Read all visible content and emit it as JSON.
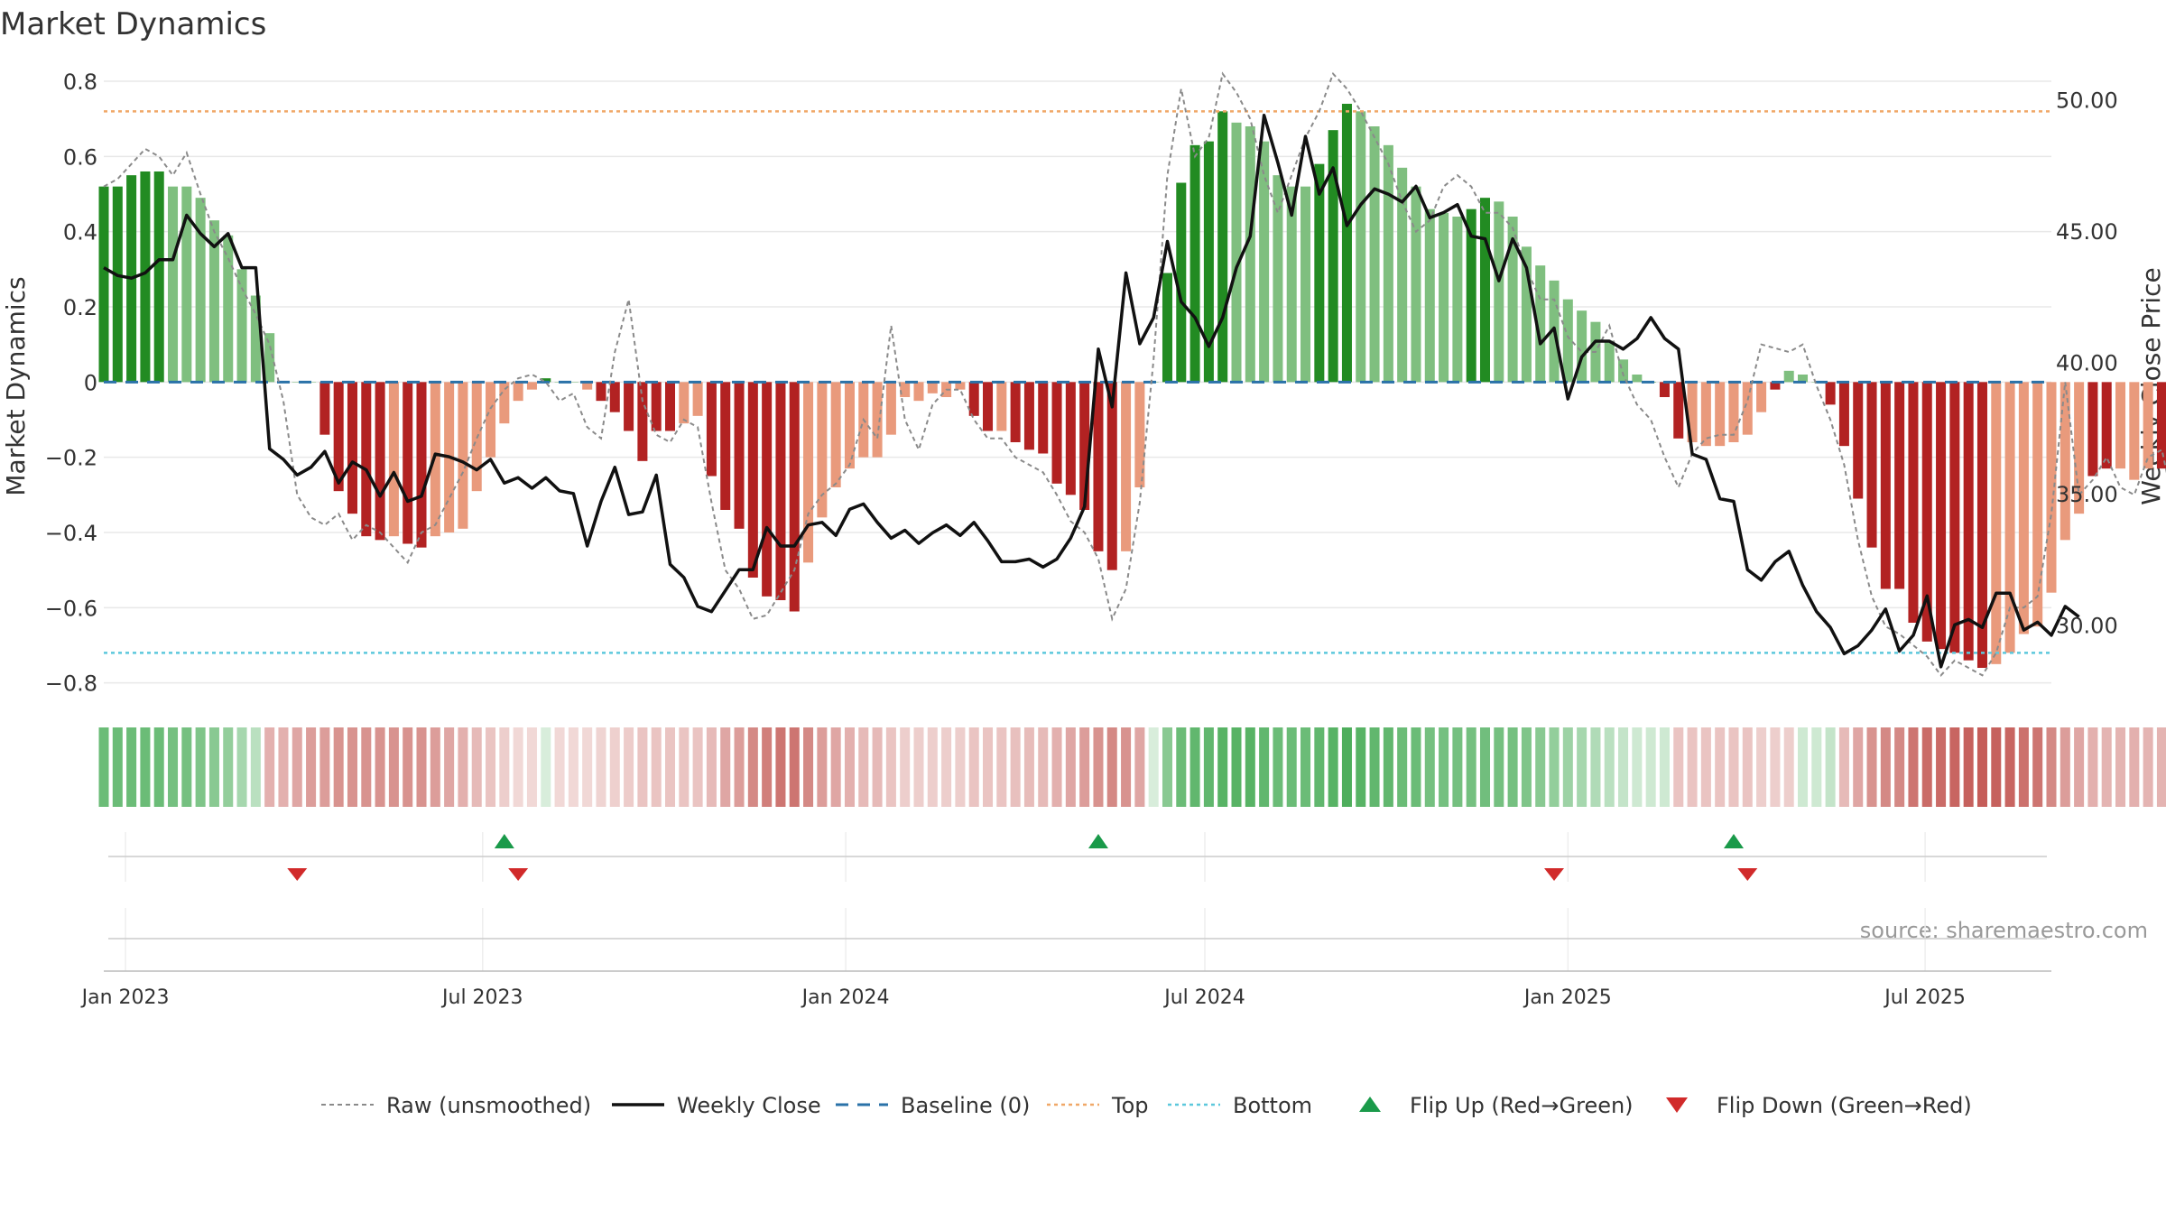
{
  "title": "Market Dynamics",
  "source": "source: sharemaestro.com",
  "colors": {
    "strong_green": "#228b22",
    "light_green": "#7fbf7f",
    "strong_red": "#b22222",
    "light_red": "#e99a7c",
    "raw": "#8a8a8a",
    "close": "#111111",
    "baseline": "#2a72a8",
    "top": "#f0a868",
    "bottom": "#5cc8dc",
    "flip_up": "#1a9a4a",
    "flip_down": "#d12a2a",
    "grid": "#e8e8e8",
    "axis": "#cccccc"
  },
  "chart_data": {
    "type": "bar",
    "title": "Market Dynamics",
    "ylabel": "Market Dynamics",
    "y2label": "Weekly Close Price",
    "ylim": [
      -0.82,
      0.8
    ],
    "y2lim": [
      27.5,
      50.7
    ],
    "yticks": [
      "0.8",
      "0.6",
      "0.4",
      "0.2",
      "0",
      "−0.2",
      "−0.4",
      "−0.6",
      "−0.8"
    ],
    "y2ticks": [
      "50.00",
      "45.00",
      "40.00",
      "35.00",
      "30.00"
    ],
    "xlim": [
      "2022-12-21",
      "2025-09-03"
    ],
    "xticks": [
      {
        "date": "2023-01-01",
        "label": "Jan 2023"
      },
      {
        "date": "2023-07-01",
        "label": "Jul 2023"
      },
      {
        "date": "2024-01-01",
        "label": "Jan 2024"
      },
      {
        "date": "2024-07-01",
        "label": "Jul 2024"
      },
      {
        "date": "2025-01-01",
        "label": "Jan 2025"
      },
      {
        "date": "2025-07-01",
        "label": "Jul 2025"
      }
    ],
    "top_level": 0.72,
    "bottom_level": -0.72,
    "baseline": 0,
    "start_week": "2022-12-21",
    "dynamics": [
      0.52,
      0.52,
      0.55,
      0.56,
      0.56,
      0.52,
      0.52,
      0.49,
      0.43,
      0.39,
      0.3,
      0.23,
      0.13,
      0.0,
      0.0,
      0.0,
      -0.14,
      -0.29,
      -0.35,
      -0.41,
      -0.42,
      -0.41,
      -0.43,
      -0.44,
      -0.41,
      -0.4,
      -0.39,
      -0.29,
      -0.2,
      -0.11,
      -0.05,
      -0.02,
      0.01,
      0.0,
      0.0,
      -0.02,
      -0.05,
      -0.08,
      -0.13,
      -0.21,
      -0.13,
      -0.13,
      -0.11,
      -0.09,
      -0.25,
      -0.34,
      -0.39,
      -0.52,
      -0.57,
      -0.58,
      -0.61,
      -0.48,
      -0.36,
      -0.28,
      -0.23,
      -0.2,
      -0.2,
      -0.14,
      -0.04,
      -0.05,
      -0.03,
      -0.04,
      -0.02,
      -0.09,
      -0.13,
      -0.13,
      -0.16,
      -0.18,
      -0.19,
      -0.27,
      -0.3,
      -0.34,
      -0.45,
      -0.5,
      -0.45,
      -0.28,
      0.0,
      0.29,
      0.53,
      0.63,
      0.64,
      0.72,
      0.69,
      0.68,
      0.64,
      0.55,
      0.52,
      0.52,
      0.58,
      0.67,
      0.74,
      0.72,
      0.68,
      0.63,
      0.57,
      0.52,
      0.46,
      0.45,
      0.44,
      0.46,
      0.49,
      0.48,
      0.44,
      0.36,
      0.31,
      0.27,
      0.22,
      0.19,
      0.16,
      0.11,
      0.06,
      0.02,
      0.0,
      -0.04,
      -0.15,
      -0.16,
      -0.17,
      -0.17,
      -0.16,
      -0.14,
      -0.08,
      -0.02,
      0.03,
      0.02,
      0.0,
      -0.06,
      -0.17,
      -0.31,
      -0.44,
      -0.55,
      -0.55,
      -0.64,
      -0.69,
      -0.71,
      -0.72,
      -0.74,
      -0.76,
      -0.75,
      -0.72,
      -0.67,
      -0.65,
      -0.56,
      -0.42,
      -0.35,
      -0.25,
      -0.23,
      -0.23,
      -0.26,
      -0.23,
      -0.23,
      -0.25,
      -0.17,
      -0.16,
      -0.22,
      -0.22,
      -0.22
    ],
    "strength": [
      "s",
      "s",
      "s",
      "s",
      "s",
      "l",
      "l",
      "l",
      "l",
      "l",
      "l",
      "l",
      "l",
      "l",
      "l",
      "l",
      "s",
      "s",
      "s",
      "s",
      "s",
      "l",
      "s",
      "s",
      "l",
      "l",
      "l",
      "l",
      "l",
      "l",
      "l",
      "l",
      "s",
      "l",
      "l",
      "l",
      "s",
      "s",
      "s",
      "s",
      "s",
      "s",
      "l",
      "l",
      "s",
      "s",
      "s",
      "s",
      "s",
      "s",
      "s",
      "l",
      "l",
      "l",
      "l",
      "l",
      "l",
      "l",
      "l",
      "l",
      "l",
      "l",
      "l",
      "s",
      "s",
      "l",
      "s",
      "s",
      "s",
      "s",
      "s",
      "s",
      "s",
      "s",
      "l",
      "l",
      "l",
      "s",
      "s",
      "s",
      "s",
      "s",
      "l",
      "l",
      "l",
      "l",
      "l",
      "l",
      "s",
      "s",
      "s",
      "l",
      "l",
      "l",
      "l",
      "l",
      "l",
      "l",
      "l",
      "s",
      "s",
      "l",
      "l",
      "l",
      "l",
      "l",
      "l",
      "l",
      "l",
      "l",
      "l",
      "l",
      "s",
      "s",
      "s",
      "l",
      "l",
      "l",
      "l",
      "l",
      "l",
      "s",
      "l",
      "l",
      "l",
      "s",
      "s",
      "s",
      "s",
      "s",
      "s",
      "s",
      "s",
      "s",
      "s",
      "s",
      "s",
      "l",
      "l",
      "l",
      "l",
      "l",
      "l",
      "l",
      "s",
      "s",
      "l",
      "l",
      "l",
      "s",
      "l",
      "s",
      "s",
      "s"
    ],
    "raw": [
      0.52,
      0.54,
      0.58,
      0.62,
      0.6,
      0.55,
      0.61,
      0.5,
      0.4,
      0.33,
      0.25,
      0.18,
      0.1,
      -0.05,
      -0.3,
      -0.36,
      -0.38,
      -0.35,
      -0.42,
      -0.38,
      -0.4,
      -0.44,
      -0.48,
      -0.4,
      -0.38,
      -0.31,
      -0.24,
      -0.15,
      -0.07,
      -0.02,
      0.01,
      0.02,
      0.0,
      -0.05,
      -0.03,
      -0.12,
      -0.15,
      0.08,
      0.22,
      -0.05,
      -0.14,
      -0.16,
      -0.1,
      -0.12,
      -0.32,
      -0.5,
      -0.55,
      -0.63,
      -0.62,
      -0.56,
      -0.5,
      -0.35,
      -0.3,
      -0.27,
      -0.22,
      -0.1,
      -0.15,
      0.15,
      -0.1,
      -0.18,
      -0.06,
      -0.02,
      -0.02,
      -0.1,
      -0.15,
      -0.15,
      -0.2,
      -0.22,
      -0.24,
      -0.3,
      -0.37,
      -0.4,
      -0.47,
      -0.63,
      -0.55,
      -0.32,
      0.06,
      0.55,
      0.78,
      0.6,
      0.65,
      0.82,
      0.77,
      0.7,
      0.55,
      0.45,
      0.55,
      0.65,
      0.72,
      0.82,
      0.78,
      0.72,
      0.65,
      0.58,
      0.48,
      0.4,
      0.43,
      0.52,
      0.55,
      0.52,
      0.45,
      0.45,
      0.41,
      0.3,
      0.22,
      0.22,
      0.12,
      0.08,
      0.08,
      0.15,
      0.02,
      -0.06,
      -0.1,
      -0.2,
      -0.28,
      -0.19,
      -0.15,
      -0.14,
      -0.14,
      -0.05,
      0.1,
      0.09,
      0.08,
      0.1,
      -0.01,
      -0.1,
      -0.22,
      -0.42,
      -0.57,
      -0.65,
      -0.67,
      -0.7,
      -0.73,
      -0.78,
      -0.74,
      -0.76,
      -0.78,
      -0.72,
      -0.6,
      -0.6,
      -0.57,
      -0.35,
      0.0,
      -0.3,
      -0.26,
      -0.2,
      -0.28,
      -0.3,
      -0.2,
      -0.18,
      -0.35,
      0.03,
      -0.31,
      -0.26,
      -0.34
    ],
    "close": [
      43.6,
      43.3,
      43.2,
      43.4,
      43.9,
      43.9,
      45.6,
      44.9,
      44.4,
      44.9,
      43.6,
      43.6,
      36.7,
      36.3,
      35.7,
      36.0,
      36.6,
      35.4,
      36.2,
      35.9,
      34.9,
      35.8,
      34.7,
      34.9,
      36.5,
      36.4,
      36.2,
      35.9,
      36.3,
      35.4,
      35.6,
      35.2,
      35.6,
      35.1,
      35.0,
      33.0,
      34.7,
      36.0,
      34.2,
      34.3,
      35.7,
      32.3,
      31.8,
      30.7,
      30.5,
      31.3,
      32.1,
      32.1,
      33.7,
      33.0,
      33.0,
      33.8,
      33.9,
      33.4,
      34.4,
      34.6,
      33.9,
      33.3,
      33.6,
      33.1,
      33.5,
      33.8,
      33.4,
      33.9,
      33.2,
      32.4,
      32.4,
      32.5,
      32.2,
      32.5,
      33.3,
      34.5,
      40.5,
      38.3,
      43.4,
      40.7,
      41.7,
      44.6,
      42.3,
      41.7,
      40.6,
      41.7,
      43.6,
      44.8,
      49.4,
      47.6,
      45.6,
      48.6,
      46.4,
      47.4,
      45.2,
      46.0,
      46.6,
      46.4,
      46.1,
      46.7,
      45.5,
      45.7,
      46.0,
      44.8,
      44.7,
      43.1,
      44.7,
      43.6,
      40.7,
      41.3,
      38.6,
      40.2,
      40.8,
      40.8,
      40.5,
      40.9,
      41.7,
      40.9,
      40.5,
      36.5,
      36.3,
      34.8,
      34.7,
      32.1,
      31.7,
      32.4,
      32.8,
      31.5,
      30.5,
      29.9,
      28.9,
      29.2,
      29.8,
      30.6,
      29.0,
      29.6,
      31.1,
      28.4,
      30.0,
      30.2,
      29.9,
      31.2,
      31.2,
      29.8,
      30.1,
      29.6,
      30.7,
      30.3
    ],
    "heat": [
      1,
      1,
      1,
      1,
      1,
      1,
      1,
      1,
      1,
      1,
      1,
      1,
      0,
      0,
      0,
      0,
      0,
      0,
      0,
      0,
      0,
      0,
      0,
      0,
      0,
      0,
      0,
      0,
      0,
      0,
      0,
      0,
      1,
      0,
      0,
      0,
      0,
      0,
      0,
      0,
      0,
      0,
      0,
      0,
      0,
      0,
      0,
      0,
      0,
      0,
      0,
      0,
      0,
      0,
      0,
      0,
      0,
      0,
      0,
      0,
      0,
      0,
      0,
      0,
      0,
      0,
      0,
      0,
      0,
      0,
      0,
      0,
      0,
      0,
      0,
      0,
      1,
      1,
      1,
      1,
      1,
      1,
      1,
      1,
      1,
      1,
      1,
      1,
      1,
      1,
      1,
      1,
      1,
      1,
      1,
      1,
      1,
      1,
      1,
      1,
      1,
      1,
      1,
      1,
      1,
      1,
      1,
      1,
      1,
      1,
      1,
      1,
      1,
      1,
      0,
      0,
      0,
      0,
      0,
      0,
      0,
      0,
      0,
      1,
      1,
      1,
      0,
      0,
      0,
      0,
      0,
      0,
      0,
      0,
      0,
      0,
      0,
      0,
      0,
      0,
      0,
      0,
      0,
      0,
      0,
      0,
      0,
      0,
      0,
      0,
      0,
      0,
      0,
      0
    ],
    "heat_intensity": [
      0.75,
      0.75,
      0.75,
      0.75,
      0.75,
      0.7,
      0.7,
      0.65,
      0.6,
      0.55,
      0.45,
      0.35,
      0.4,
      0.4,
      0.45,
      0.5,
      0.5,
      0.55,
      0.55,
      0.55,
      0.55,
      0.55,
      0.55,
      0.55,
      0.5,
      0.45,
      0.4,
      0.35,
      0.3,
      0.25,
      0.2,
      0.2,
      0.2,
      0.2,
      0.2,
      0.2,
      0.22,
      0.24,
      0.26,
      0.3,
      0.3,
      0.3,
      0.3,
      0.3,
      0.35,
      0.45,
      0.5,
      0.6,
      0.65,
      0.7,
      0.7,
      0.6,
      0.5,
      0.45,
      0.4,
      0.35,
      0.35,
      0.3,
      0.25,
      0.25,
      0.25,
      0.25,
      0.25,
      0.3,
      0.3,
      0.3,
      0.32,
      0.34,
      0.35,
      0.4,
      0.45,
      0.5,
      0.55,
      0.6,
      0.55,
      0.45,
      0.2,
      0.6,
      0.75,
      0.8,
      0.8,
      0.85,
      0.85,
      0.85,
      0.8,
      0.75,
      0.75,
      0.75,
      0.8,
      0.85,
      0.9,
      0.85,
      0.8,
      0.8,
      0.75,
      0.75,
      0.7,
      0.7,
      0.7,
      0.7,
      0.72,
      0.7,
      0.7,
      0.65,
      0.6,
      0.55,
      0.5,
      0.45,
      0.4,
      0.35,
      0.3,
      0.25,
      0.25,
      0.25,
      0.3,
      0.3,
      0.3,
      0.3,
      0.3,
      0.3,
      0.25,
      0.25,
      0.25,
      0.25,
      0.25,
      0.3,
      0.35,
      0.45,
      0.55,
      0.6,
      0.6,
      0.7,
      0.75,
      0.75,
      0.78,
      0.8,
      0.82,
      0.8,
      0.78,
      0.72,
      0.7,
      0.6,
      0.5,
      0.45,
      0.4,
      0.38,
      0.38,
      0.4,
      0.38,
      0.38,
      0.4,
      0.35,
      0.35,
      0.38,
      0.38,
      0.38
    ],
    "flips_up": [
      "2023-07-12",
      "2024-05-08",
      "2025-03-26"
    ],
    "flips_down": [
      "2023-03-29",
      "2023-07-19",
      "2024-12-25",
      "2025-04-02"
    ],
    "legend": [
      {
        "key": "raw",
        "label": "Raw (unsmoothed)"
      },
      {
        "key": "close",
        "label": "Weekly Close"
      },
      {
        "key": "baseline",
        "label": "Baseline (0)"
      },
      {
        "key": "top",
        "label": "Top"
      },
      {
        "key": "bottom",
        "label": "Bottom"
      },
      {
        "key": "flip_up",
        "label": "Flip Up (Red→Green)"
      },
      {
        "key": "flip_down",
        "label": "Flip Down (Green→Red)"
      }
    ],
    "grid": true,
    "legend_position": "bottom-center"
  }
}
